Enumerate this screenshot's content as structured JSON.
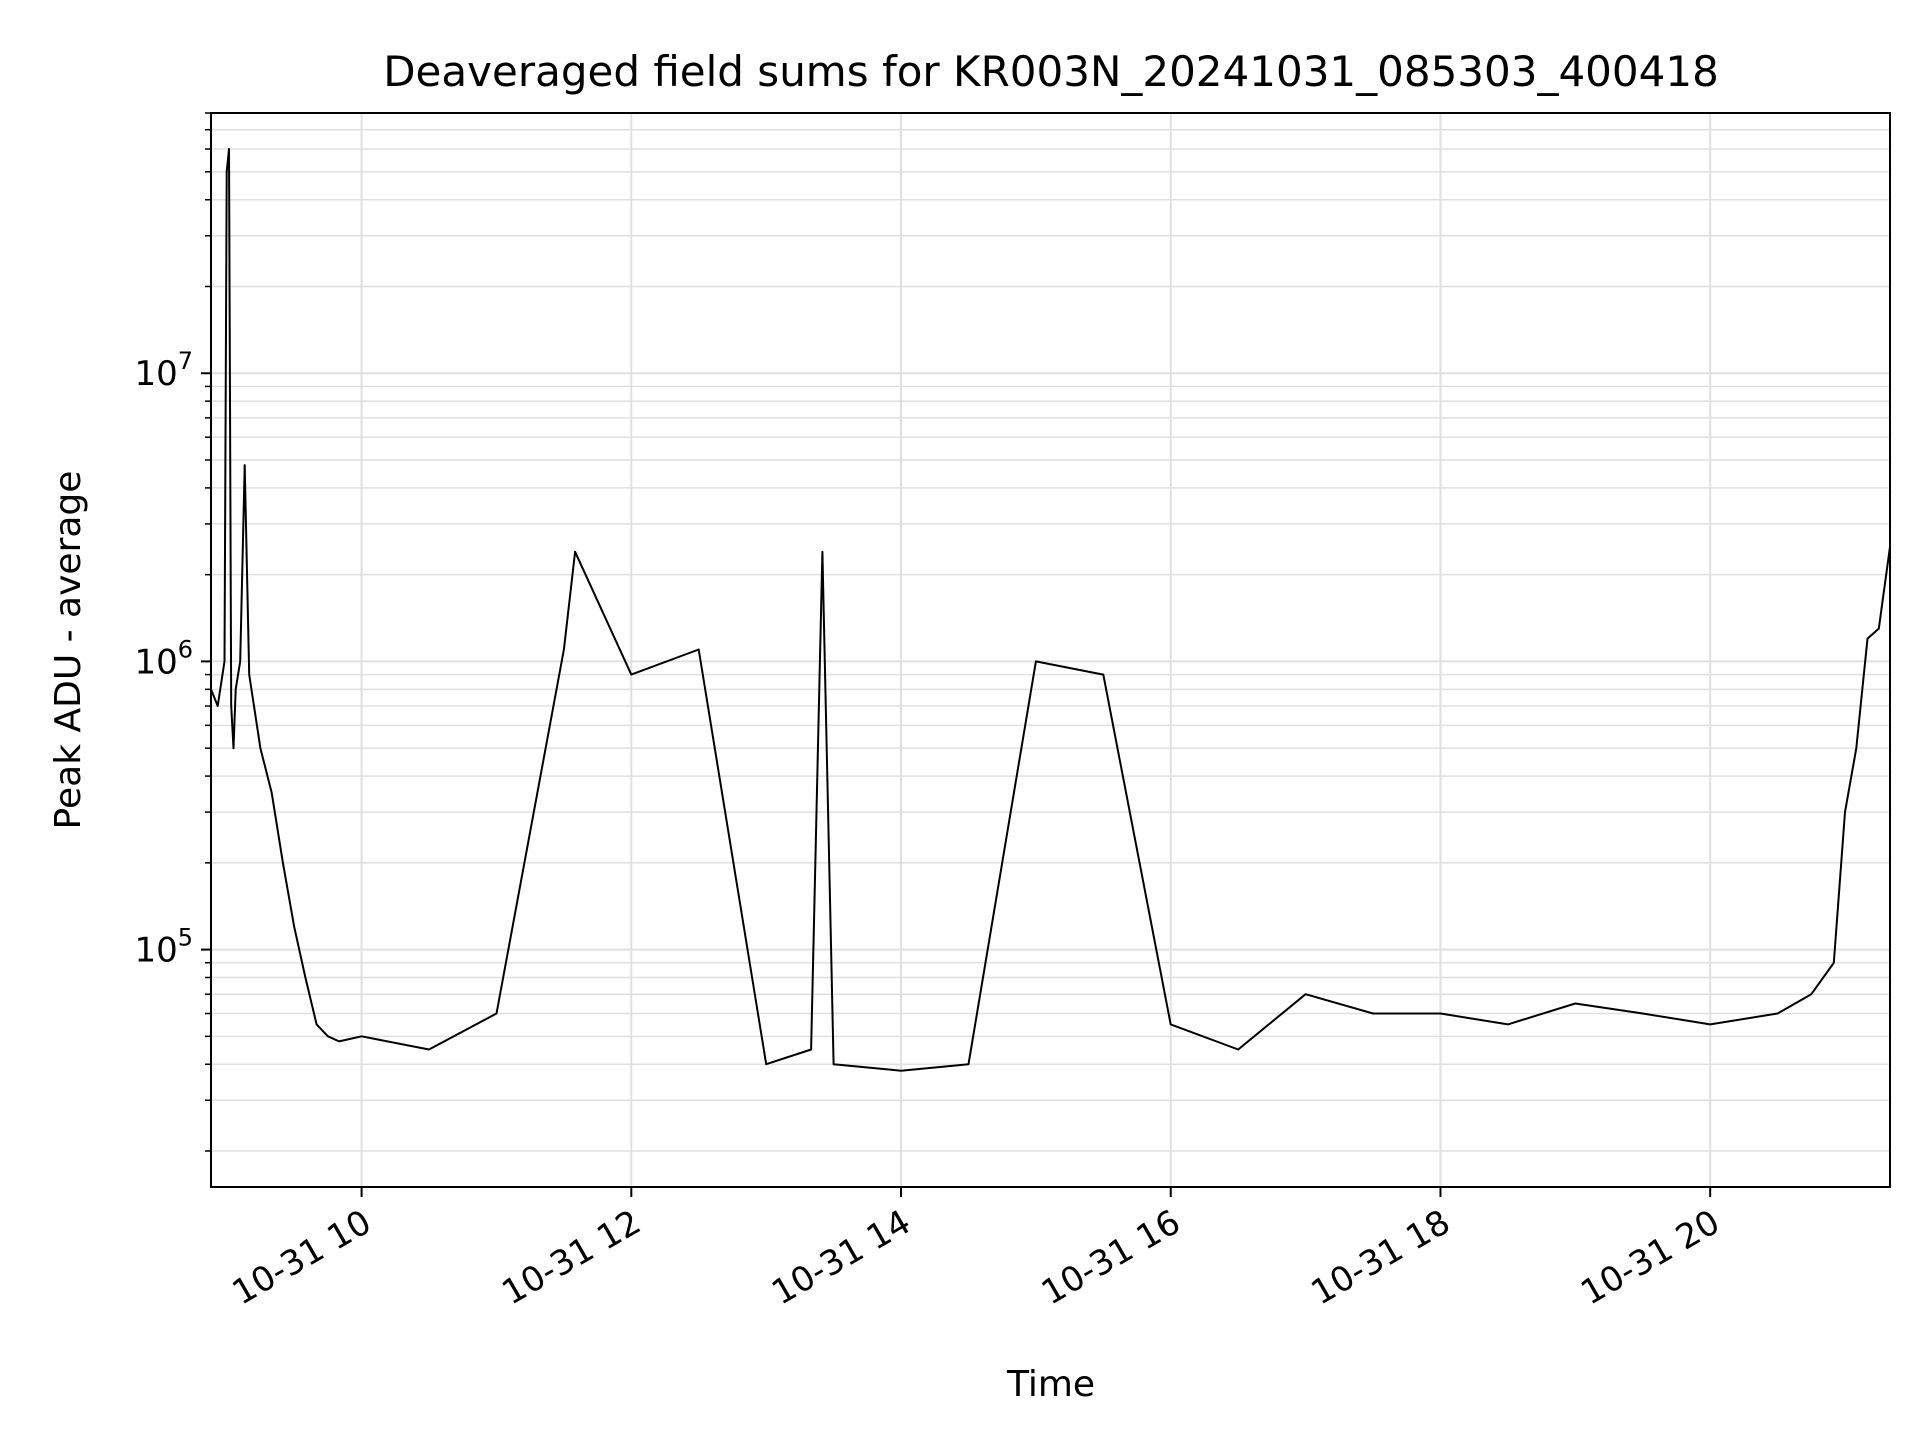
{
  "chart_data": {
    "type": "line",
    "title": "Deaveraged field sums for KR003N_20241031_085303_400418",
    "xlabel": "Time",
    "ylabel": "Peak ADU - average",
    "y_scale": "log",
    "ylim": [
      15000,
      80000000
    ],
    "xlim": [
      "10-31 08:53",
      "10-31 21:20"
    ],
    "grid": true,
    "line_color": "#000000",
    "grid_color": "#e0e0e0",
    "x_ticks": [
      "10-31 10",
      "10-31 12",
      "10-31 14",
      "10-31 16",
      "10-31 18",
      "10-31 20"
    ],
    "y_ticks": [
      {
        "base": "10",
        "exp": "5",
        "value": 100000
      },
      {
        "base": "10",
        "exp": "6",
        "value": 1000000
      },
      {
        "base": "10",
        "exp": "7",
        "value": 10000000
      }
    ],
    "series": [
      {
        "x": [
          "10-31 08:53",
          "10-31 08:56",
          "10-31 08:59",
          "10-31 09:00",
          "10-31 09:01",
          "10-31 09:02",
          "10-31 09:03",
          "10-31 09:04",
          "10-31 09:06",
          "10-31 09:08",
          "10-31 09:10",
          "10-31 09:15",
          "10-31 09:20",
          "10-31 09:25",
          "10-31 09:30",
          "10-31 09:35",
          "10-31 09:40",
          "10-31 09:45",
          "10-31 09:50",
          "10-31 10:00",
          "10-31 10:30",
          "10-31 11:00",
          "10-31 11:30",
          "10-31 11:35",
          "10-31 12:00",
          "10-31 12:30",
          "10-31 13:00",
          "10-31 13:20",
          "10-31 13:25",
          "10-31 13:30",
          "10-31 14:00",
          "10-31 14:30",
          "10-31 15:00",
          "10-31 15:30",
          "10-31 16:00",
          "10-31 16:30",
          "10-31 17:00",
          "10-31 17:30",
          "10-31 18:00",
          "10-31 18:30",
          "10-31 19:00",
          "10-31 19:30",
          "10-31 20:00",
          "10-31 20:30",
          "10-31 20:45",
          "10-31 20:55",
          "10-31 21:00",
          "10-31 21:05",
          "10-31 21:10",
          "10-31 21:15",
          "10-31 21:20"
        ],
        "y": [
          800000,
          700000,
          1000000,
          50000000,
          60000000,
          700000,
          500000,
          800000,
          1000000,
          4800000,
          900000,
          500000,
          350000,
          200000,
          120000,
          80000,
          55000,
          50000,
          48000,
          50000,
          45000,
          60000,
          1100000,
          2400000,
          900000,
          1100000,
          40000,
          45000,
          2400000,
          40000,
          38000,
          40000,
          1000000,
          900000,
          55000,
          45000,
          70000,
          60000,
          60000,
          55000,
          65000,
          60000,
          55000,
          60000,
          70000,
          90000,
          300000,
          500000,
          1200000,
          1300000,
          2500000
        ]
      }
    ]
  }
}
